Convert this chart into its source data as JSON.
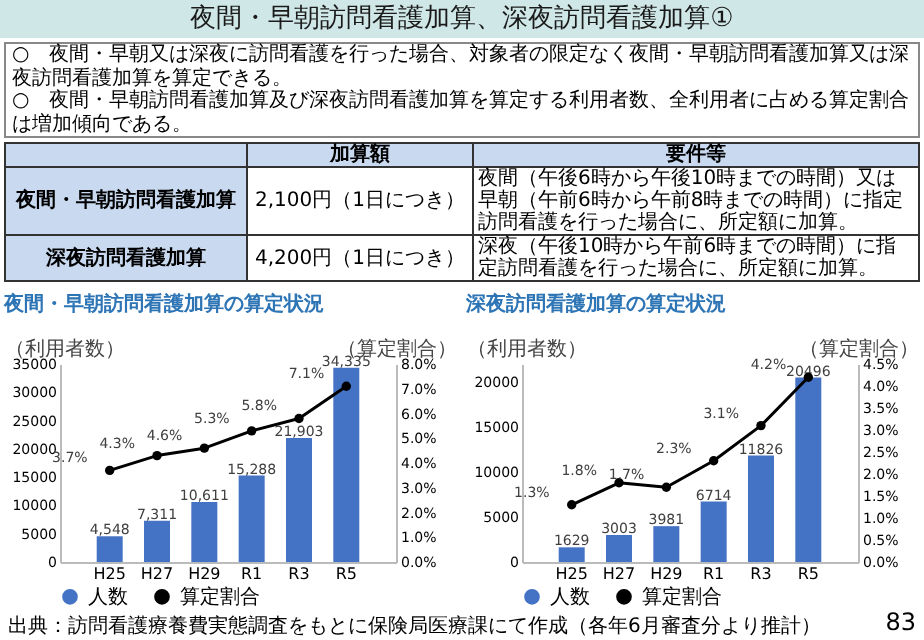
{
  "chart_data": [
    {
      "type": "other",
      "title": "夜間・早朝訪問看護加算、深夜訪問看護加算①",
      "annotations": [
        "○　夜間・早朝又は深夜に訪問看護を行った場合、対象者の限定なく夜間・早朝訪問看護加算又は深夜訪問看護加算を算定できる。",
        "○　夜間・早朝訪問看護加算及び深夜訪問看護加算を算定する利用者数、全利用者に占める算定割合は増加傾向である。",
        "加算額",
        "要件等",
        "夜間・早朝訪問看護加算",
        "2,100円（1日につき）",
        "夜間（午後6時から午後10時までの時間）又は早朝（午前6時から午前8時までの時間）に指定訪問看護を行った場合に、所定額に加算。",
        "深夜訪問看護加算",
        "4,200円（1日につき）",
        "深夜（午後10時から午前6時までの時間）に指定訪問看護を行った場合に、所定額に加算。",
        "出典：訪問看護療養費実態調査をもとに保険局医療課にて作成（各年6月審査分より推計）",
        "83"
      ]
    },
    {
      "type": "bar",
      "title": "夜間・早朝訪問看護加算の算定状況",
      "categories": [
        "H25",
        "H27",
        "H29",
        "R1",
        "R3",
        "R5"
      ],
      "ylabel": "（利用者数）",
      "y2label": "（算定割合）",
      "legend": "bottom",
      "ylim": [
        0,
        35000
      ],
      "yticks": [
        0,
        5000,
        10000,
        15000,
        20000,
        25000,
        30000,
        35000
      ],
      "y2lim": [
        0,
        8
      ],
      "y2ticks": [
        {
          "value": 0,
          "label": "0.0%"
        },
        {
          "value": 1,
          "label": "1.0%"
        },
        {
          "value": 2,
          "label": "2.0%"
        },
        {
          "value": 3,
          "label": "3.0%"
        },
        {
          "value": 4,
          "label": "4.0%"
        },
        {
          "value": 5,
          "label": "5.0%"
        },
        {
          "value": 6,
          "label": "6.0%"
        },
        {
          "value": 7,
          "label": "7.0%"
        },
        {
          "value": 8,
          "label": "8.0%"
        }
      ],
      "series": [
        {
          "name": "人数",
          "type": "bar",
          "color": "#4472c4",
          "values": [
            4548,
            7311,
            10611,
            15288,
            21903,
            34335
          ],
          "value_labels": [
            "4,548",
            "7,311",
            "10,611",
            "15,288",
            "21,903",
            "34,335"
          ]
        },
        {
          "name": "算定割合",
          "type": "line",
          "axis": "y2",
          "color": "#000000",
          "marker": "circle",
          "values": [
            3.7,
            4.3,
            4.6,
            5.3,
            5.8,
            7.1
          ],
          "value_labels": [
            "3.7%",
            "4.3%",
            "4.6%",
            "5.3%",
            "5.8%",
            "7.1%"
          ]
        }
      ]
    },
    {
      "type": "bar",
      "title": "深夜訪問看護加算の算定状況",
      "categories": [
        "H25",
        "H27",
        "H29",
        "R1",
        "R3",
        "R5"
      ],
      "ylabel": "（利用者数）",
      "y2label": "（算定割合）",
      "legend": "bottom",
      "ylim": [
        0,
        22000
      ],
      "yticks": [
        0,
        5000,
        10000,
        15000,
        20000
      ],
      "y2lim": [
        0,
        4.5
      ],
      "y2ticks": [
        {
          "value": 0,
          "label": "0.0%"
        },
        {
          "value": 0.5,
          "label": "0.5%"
        },
        {
          "value": 1,
          "label": "1.0%"
        },
        {
          "value": 1.5,
          "label": "1.5%"
        },
        {
          "value": 2,
          "label": "2.0%"
        },
        {
          "value": 2.5,
          "label": "2.5%"
        },
        {
          "value": 3,
          "label": "3.0%"
        },
        {
          "value": 3.5,
          "label": "3.5%"
        },
        {
          "value": 4,
          "label": "4.0%"
        },
        {
          "value": 4.5,
          "label": "4.5%"
        }
      ],
      "series": [
        {
          "name": "人数",
          "type": "bar",
          "color": "#4472c4",
          "values": [
            1629,
            3003,
            3981,
            6714,
            11826,
            20496
          ],
          "value_labels": [
            "1629",
            "3003",
            "3981",
            "6714",
            "11826",
            "20496"
          ]
        },
        {
          "name": "算定割合",
          "type": "line",
          "axis": "y2",
          "color": "#000000",
          "marker": "circle",
          "values": [
            1.3,
            1.8,
            1.7,
            2.3,
            3.1,
            4.2
          ],
          "value_labels": [
            "1.3%",
            "1.8%",
            "1.7%",
            "2.3%",
            "3.1%",
            "4.2%"
          ]
        }
      ]
    }
  ]
}
